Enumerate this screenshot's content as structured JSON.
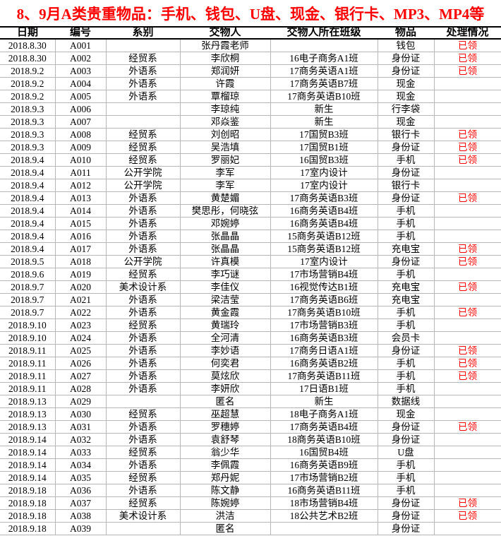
{
  "title": "8、9月A类贵重物品：手机、钱包、U盘、现金、银行卡、MP3、MP4等",
  "colors": {
    "title_text": "#ff0000",
    "claimed_text": "#ff0000",
    "grid_line": "#b7b7b7",
    "header_border": "#000000",
    "background": "#ffffff"
  },
  "table": {
    "headers": [
      "日期",
      "编号",
      "系别",
      "交物人",
      "交物人所在班级",
      "物品",
      "处理情况"
    ],
    "claimed_label": "已领",
    "rows": [
      [
        "2018.8.30",
        "A001",
        "",
        "张丹霞老师",
        "",
        "钱包",
        "已领"
      ],
      [
        "2018.8.30",
        "A002",
        "经贸系",
        "李欣桐",
        "16电子商务A1班",
        "身份证",
        "已领"
      ],
      [
        "2018.9.2",
        "A003",
        "外语系",
        "郑润妍",
        "17商务英语A1班",
        "身份证",
        "已领"
      ],
      [
        "2018.9.2",
        "A004",
        "外语系",
        "许霞",
        "17商务英语B7班",
        "现金",
        ""
      ],
      [
        "2018.9.2",
        "A005",
        "外语系",
        "覃榴琼",
        "17商务英语B10班",
        "现金",
        ""
      ],
      [
        "2018.9.3",
        "A006",
        "",
        "李琼纯",
        "新生",
        "行李袋",
        ""
      ],
      [
        "2018.9.3",
        "A007",
        "",
        "邓焱鉴",
        "新生",
        "现金",
        ""
      ],
      [
        "2018.9.3",
        "A008",
        "经贸系",
        "刘创昭",
        "17国贸B3班",
        "银行卡",
        "已领"
      ],
      [
        "2018.9.3",
        "A009",
        "经贸系",
        "吴浩填",
        "17国贸B1班",
        "身份证",
        "已领"
      ],
      [
        "2018.9.4",
        "A010",
        "经贸系",
        "罗丽妃",
        "16国贸B3班",
        "手机",
        "已领"
      ],
      [
        "2018.9.4",
        "A011",
        "公开学院",
        "李军",
        "17室内设计",
        "身份证",
        ""
      ],
      [
        "2018.9.4",
        "A012",
        "公开学院",
        "李军",
        "17室内设计",
        "银行卡",
        ""
      ],
      [
        "2018.9.4",
        "A013",
        "外语系",
        "黄楚媚",
        "17商务英语B3班",
        "身份证",
        "已领"
      ],
      [
        "2018.9.4",
        "A014",
        "外语系",
        "樊思彤，何晓弦",
        "16商务英语B4班",
        "手机",
        ""
      ],
      [
        "2018.9.4",
        "A015",
        "外语系",
        "邓婉婷",
        "16商务英语B4班",
        "手机",
        ""
      ],
      [
        "2018.9.4",
        "A016",
        "外语系",
        "张晶晶",
        "15商务英语B12班",
        "手机",
        ""
      ],
      [
        "2018.9.4",
        "A017",
        "外语系",
        "张晶晶",
        "15商务英语B12班",
        "充电宝",
        "已领"
      ],
      [
        "2018.9.5",
        "A018",
        "公开学院",
        "许真模",
        "17室内设计",
        "身份证",
        "已领"
      ],
      [
        "2018.9.6",
        "A019",
        "经贸系",
        "李巧谜",
        "17市场营销B4班",
        "手机",
        ""
      ],
      [
        "2018.9.7",
        "A020",
        "美术设计系",
        "李佳仪",
        "16视觉传达B1班",
        "充电宝",
        "已领"
      ],
      [
        "2018.9.7",
        "A021",
        "外语系",
        "梁洁莹",
        "17商务英语B6班",
        "充电宝",
        ""
      ],
      [
        "2018.9.7",
        "A022",
        "外语系",
        "黄金霞",
        "17商务英语B10班",
        "手机",
        "已领"
      ],
      [
        "2018.9.10",
        "A023",
        "经贸系",
        "黄瑞玲",
        "17市场营销B3班",
        "手机",
        ""
      ],
      [
        "2018.9.10",
        "A024",
        "外语系",
        "全河清",
        "16商务英语B3班",
        "会员卡",
        ""
      ],
      [
        "2018.9.11",
        "A025",
        "外语系",
        "李妙语",
        "17商务日语A1班",
        "身份证",
        "已领"
      ],
      [
        "2018.9.11",
        "A026",
        "外语系",
        "何奕君",
        "16商务英语B2班",
        "手机",
        "已领"
      ],
      [
        "2018.9.11",
        "A027",
        "外语系",
        "莫炫欣",
        "17商务英语B11班",
        "手机",
        "已领"
      ],
      [
        "2018.9.11",
        "A028",
        "外语系",
        "李妍欣",
        "17日语B1班",
        "手机",
        ""
      ],
      [
        "2018.9.13",
        "A029",
        "",
        "匿名",
        "新生",
        "数据线",
        ""
      ],
      [
        "2018.9.13",
        "A030",
        "经贸系",
        "巫超慧",
        "18电子商务A1班",
        "现金",
        ""
      ],
      [
        "2018.9.13",
        "A031",
        "外语系",
        "罗穗婷",
        "17商务英语B4班",
        "身份证",
        "已领"
      ],
      [
        "2018.9.14",
        "A032",
        "外语系",
        "袁舒琴",
        "18商务英语B10班",
        "身份证",
        ""
      ],
      [
        "2018.9.14",
        "A033",
        "经贸系",
        "翁少华",
        "16国贸B4班",
        "U盘",
        ""
      ],
      [
        "2018.9.14",
        "A034",
        "外语系",
        "李佩霞",
        "16商务英语B9班",
        "手机",
        ""
      ],
      [
        "2018.9.14",
        "A035",
        "经贸系",
        "郑丹妮",
        "17市场营销B2班",
        "手机",
        ""
      ],
      [
        "2018.9.18",
        "A036",
        "外语系",
        "陈文静",
        "16商务英语B11班",
        "手机",
        ""
      ],
      [
        "2018.9.18",
        "A037",
        "经贸系",
        "陈婉婷",
        "18市场营销B4班",
        "身份证",
        "已领"
      ],
      [
        "2018.9.18",
        "A038",
        "美术设计系",
        "洪洁",
        "18公共艺术B2班",
        "身份证",
        "已领"
      ],
      [
        "2018.9.18",
        "A039",
        "",
        "匿名",
        "",
        "身份证",
        ""
      ]
    ]
  }
}
